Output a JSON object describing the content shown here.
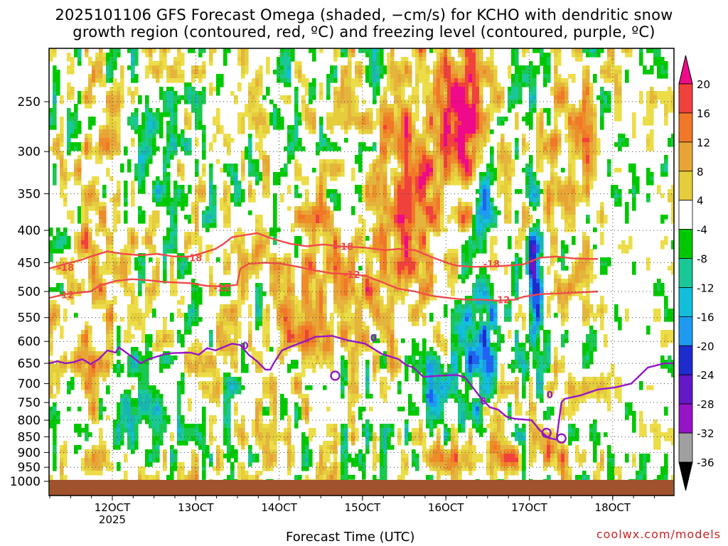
{
  "title": {
    "line1": "2025101106 GFS Forecast Omega (shaded, −cm/s) for KCHO with dendritic snow",
    "line2": "growth region (contoured, red, ºC) and freezing level (contoured, purple, ºC)"
  },
  "credit": "coolwx.com/models",
  "chart_data": {
    "type": "heatmap",
    "xlabel": "Forecast Time (UTC)",
    "ylabel": "",
    "x_ticks": [
      "12OCT",
      "13OCT",
      "14OCT",
      "15OCT",
      "16OCT",
      "17OCT",
      "18OCT"
    ],
    "x_year_label": "2025",
    "y_ticks": [
      250,
      300,
      350,
      400,
      450,
      500,
      550,
      600,
      650,
      700,
      750,
      800,
      850,
      900,
      950,
      1000
    ],
    "ylim_hpa": [
      200,
      1010
    ],
    "y_log_pressure": true,
    "grid": true,
    "ground_level_hpa": 990,
    "colorbar": {
      "labels": [
        "20",
        "16",
        "12",
        "8",
        "4",
        "-4",
        "-8",
        "-12",
        "-16",
        "-20",
        "-24",
        "-28",
        "-32",
        "-36"
      ],
      "levels": [
        {
          "range": ">20",
          "color": "#ee0a88"
        },
        {
          "range": "16 to 20",
          "color": "#f0413c"
        },
        {
          "range": "14 to 16",
          "color": "#f07828"
        },
        {
          "range": "12 to 14",
          "color": "#ee8c2a"
        },
        {
          "range": "10 to 12",
          "color": "#e8a536"
        },
        {
          "range": "8 to 10",
          "color": "#e5b43c"
        },
        {
          "range": "6 to 8",
          "color": "#e5cd3c"
        },
        {
          "range": "4 to 6",
          "color": "#ecdd48"
        },
        {
          "range": "-4 to 4",
          "color": "#ffffff"
        },
        {
          "range": "-6 to -4",
          "color": "#00c800"
        },
        {
          "range": "-8 to -6",
          "color": "#19c850"
        },
        {
          "range": "-10 to -8",
          "color": "#19c896"
        },
        {
          "range": "-12 to -10",
          "color": "#19b4b4"
        },
        {
          "range": "-14 to -12",
          "color": "#13bedc"
        },
        {
          "range": "-16 to -14",
          "color": "#1e9bf0"
        },
        {
          "range": "-20 to -16",
          "color": "#1e64f0"
        },
        {
          "range": "-24 to -20",
          "color": "#1e2ccf"
        },
        {
          "range": "-28 to -24",
          "color": "#6418c8"
        },
        {
          "range": "-32 to -28",
          "color": "#9614c8"
        },
        {
          "range": "-36 to -32",
          "color": "#a0a0a0"
        },
        {
          "range": "<-36",
          "color": "#000000"
        }
      ]
    },
    "contours": [
      {
        "label": "-18",
        "color": "#f04a4a",
        "points": [
          [
            -1,
            460
          ],
          [
            0,
            452
          ],
          [
            1,
            445
          ],
          [
            1.5,
            440
          ],
          [
            2.5,
            432
          ],
          [
            3.5,
            436
          ],
          [
            4.5,
            438
          ],
          [
            5.5,
            436
          ],
          [
            6.5,
            440
          ],
          [
            7.5,
            440
          ],
          [
            9,
            428
          ],
          [
            9.5,
            420
          ],
          [
            10,
            410
          ],
          [
            11.5,
            404
          ],
          [
            12.5,
            413
          ],
          [
            13.5,
            420
          ],
          [
            14.5,
            424
          ],
          [
            15.5,
            421
          ],
          [
            16.5,
            424
          ],
          [
            18,
            426
          ],
          [
            19.2,
            430
          ],
          [
            20,
            428
          ],
          [
            21,
            430
          ],
          [
            22,
            441
          ],
          [
            23,
            451
          ],
          [
            23.5,
            455
          ],
          [
            24.5,
            457
          ],
          [
            26,
            456
          ],
          [
            27.5,
            453
          ],
          [
            28.5,
            442
          ],
          [
            29.5,
            440
          ],
          [
            30.5,
            443
          ],
          [
            31.5,
            444
          ],
          [
            32,
            444
          ]
        ],
        "label_at": [
          [
            0,
            458
          ],
          [
            7.7,
            442
          ],
          [
            16.8,
            424
          ],
          [
            25.6,
            452
          ]
        ]
      },
      {
        "label": "-12",
        "color": "#f04a4a",
        "points": [
          [
            -1,
            512
          ],
          [
            0,
            505
          ],
          [
            0.8,
            502
          ],
          [
            1.5,
            500
          ],
          [
            2,
            490
          ],
          [
            3,
            481
          ],
          [
            4,
            478
          ],
          [
            5,
            480
          ],
          [
            6,
            483
          ],
          [
            7.5,
            485
          ],
          [
            8.5,
            490
          ],
          [
            9.5,
            491
          ],
          [
            10.3,
            488
          ],
          [
            10.5,
            460
          ],
          [
            11,
            452
          ],
          [
            12,
            450
          ],
          [
            13,
            452
          ],
          [
            14,
            457
          ],
          [
            15,
            463
          ],
          [
            16,
            468
          ],
          [
            17,
            469
          ],
          [
            18,
            472
          ],
          [
            19,
            483
          ],
          [
            20,
            495
          ],
          [
            21,
            500
          ],
          [
            22,
            508
          ],
          [
            23,
            512
          ],
          [
            24,
            515
          ],
          [
            25,
            515
          ],
          [
            26,
            517
          ],
          [
            27,
            515
          ],
          [
            27.5,
            510
          ],
          [
            28.5,
            505
          ],
          [
            30,
            503
          ],
          [
            32,
            500
          ]
        ],
        "label_at": [
          [
            0,
            506
          ],
          [
            9.4,
            493
          ],
          [
            17.2,
            470
          ],
          [
            26.2,
            515
          ]
        ]
      },
      {
        "label": "0",
        "color": "#9616c8",
        "points": [
          [
            -1,
            650
          ],
          [
            -0.5,
            645
          ],
          [
            0,
            650
          ],
          [
            0.5,
            647
          ],
          [
            1,
            640
          ],
          [
            1.5,
            652
          ],
          [
            2,
            640
          ],
          [
            2.5,
            620
          ],
          [
            3,
            625
          ],
          [
            3.2,
            613
          ],
          [
            4,
            635
          ],
          [
            4.5,
            650
          ],
          [
            5,
            640
          ],
          [
            6,
            628
          ],
          [
            6.5,
            626
          ],
          [
            7.5,
            625
          ],
          [
            8,
            630
          ],
          [
            8.5,
            615
          ],
          [
            9,
            620
          ],
          [
            10,
            605
          ],
          [
            10.5,
            608
          ],
          [
            11,
            630
          ],
          [
            11.5,
            645
          ],
          [
            12,
            665
          ],
          [
            12.3,
            665
          ],
          [
            12.5,
            650
          ],
          [
            13,
            620
          ],
          [
            13.5,
            612
          ],
          [
            14.5,
            598
          ],
          [
            15,
            590
          ],
          [
            16,
            588
          ],
          [
            17,
            598
          ],
          [
            18,
            605
          ],
          [
            19,
            628
          ],
          [
            20,
            640
          ],
          [
            20.5,
            655
          ],
          [
            20.9,
            660
          ],
          [
            21.5,
            683
          ],
          [
            22.5,
            680
          ],
          [
            23.5,
            678
          ],
          [
            24,
            684
          ],
          [
            25,
            740
          ],
          [
            25.5,
            763
          ],
          [
            26,
            770
          ],
          [
            26.5,
            790
          ],
          [
            27,
            796
          ],
          [
            28,
            800
          ],
          [
            28.5,
            830
          ],
          [
            29,
            853
          ],
          [
            29.5,
            859
          ],
          [
            29.8,
            750
          ],
          [
            30,
            740
          ],
          [
            31,
            730
          ],
          [
            32,
            715
          ],
          [
            33,
            710
          ],
          [
            34,
            700
          ],
          [
            35,
            660
          ],
          [
            36,
            650
          ],
          [
            37,
            650
          ]
        ],
        "label_at": [
          [
            10.8,
            609
          ],
          [
            18.5,
            592
          ],
          [
            25.1,
            746
          ],
          [
            29.1,
            729
          ]
        ]
      }
    ],
    "omega_blobs": [
      {
        "t": [
          0.9,
          1.2
        ],
        "p": [
          255,
          320
        ],
        "omega": -20
      },
      {
        "t": [
          2.5,
          4.2
        ],
        "p": [
          290,
          330
        ],
        "omega": -12
      },
      {
        "t": [
          5,
          6.5
        ],
        "p": [
          210,
          260
        ],
        "omega": -10
      },
      {
        "t": [
          13,
          15
        ],
        "p": [
          210,
          330
        ],
        "omega": -12
      },
      {
        "t": [
          21,
          22
        ],
        "p": [
          210,
          300
        ],
        "omega": 12
      },
      {
        "t": [
          21.5,
          22.8
        ],
        "p": [
          210,
          340
        ],
        "omega": 20
      },
      {
        "t": [
          26,
          27.5
        ],
        "p": [
          280,
          340
        ],
        "omega": -14
      },
      {
        "t": [
          26.3,
          27
        ],
        "p": [
          380,
          560
        ],
        "omega": -24
      },
      {
        "t": [
          19.3,
          22
        ],
        "p": [
          460,
          780
        ],
        "omega": -14
      },
      {
        "t": [
          21,
          22
        ],
        "p": [
          860,
          930
        ],
        "omega": 12
      },
      {
        "t": [
          24,
          27.5
        ],
        "p": [
          860,
          940
        ],
        "omega": 10
      }
    ]
  }
}
